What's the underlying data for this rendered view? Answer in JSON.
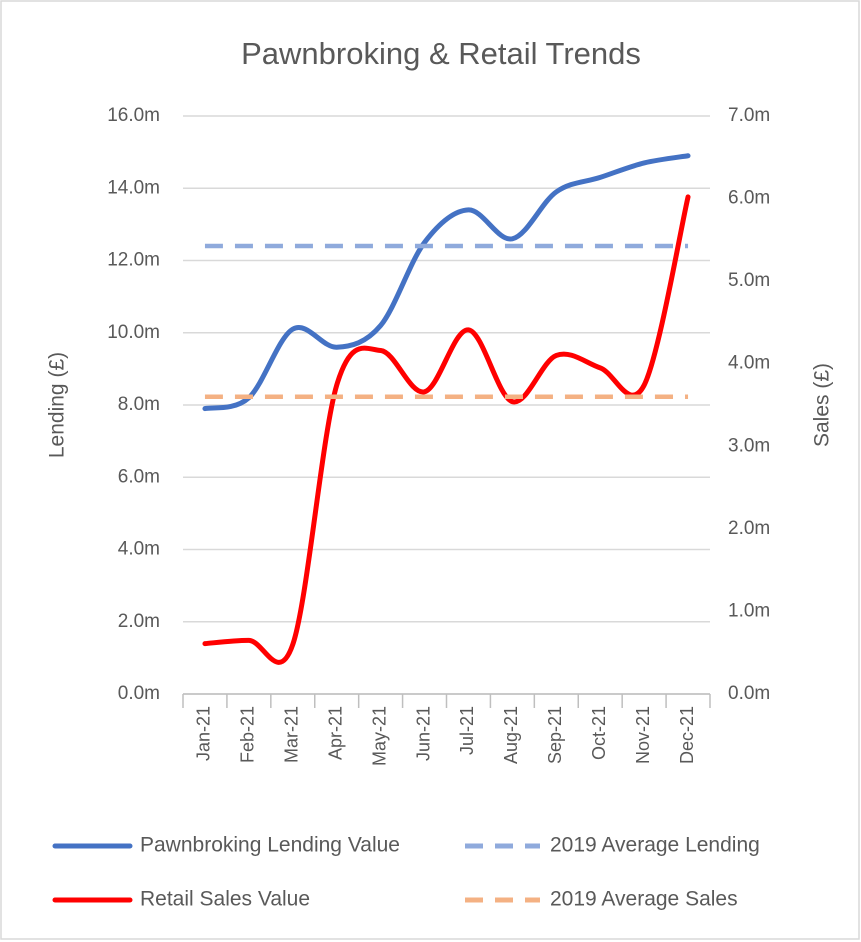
{
  "chart_data": {
    "type": "line",
    "title": "Pawnbroking & Retail Trends",
    "ylabel": "Lending (£)",
    "y2label": "Sales (£)",
    "categories": [
      "Jan-21",
      "Feb-21",
      "Mar-21",
      "Apr-21",
      "May-21",
      "Jun-21",
      "Jul-21",
      "Aug-21",
      "Sep-21",
      "Oct-21",
      "Nov-21",
      "Dec-21"
    ],
    "series": [
      {
        "name": "Pawnbroking Lending Value",
        "color": "#4472c4",
        "dashed": false,
        "axis": "y",
        "values": [
          7.9,
          8.2,
          10.1,
          9.6,
          10.2,
          12.5,
          13.4,
          12.6,
          13.9,
          14.3,
          14.7,
          14.9
        ]
      },
      {
        "name": "2019 Average Lending",
        "color": "#8faadc",
        "dashed": true,
        "axis": "y",
        "values": [
          12.4,
          12.4,
          12.4,
          12.4,
          12.4,
          12.4,
          12.4,
          12.4,
          12.4,
          12.4,
          12.4,
          12.4
        ]
      },
      {
        "name": "Retail Sales Value",
        "color": "#ff0000",
        "dashed": false,
        "axis": "y2",
        "values": [
          0.61,
          0.65,
          0.6,
          3.74,
          4.16,
          3.66,
          4.41,
          3.54,
          4.1,
          3.95,
          3.74,
          6.02
        ]
      },
      {
        "name": "2019 Average Sales",
        "color": "#f4b183",
        "dashed": true,
        "axis": "y2",
        "values": [
          3.6,
          3.6,
          3.6,
          3.6,
          3.6,
          3.6,
          3.6,
          3.6,
          3.6,
          3.6,
          3.6,
          3.6
        ]
      }
    ],
    "ylim": [
      0,
      16
    ],
    "yticks": [
      {
        "value": 0,
        "label": "0.0m"
      },
      {
        "value": 2,
        "label": "2.0m"
      },
      {
        "value": 4,
        "label": "4.0m"
      },
      {
        "value": 6,
        "label": "6.0m"
      },
      {
        "value": 8,
        "label": "8.0m"
      },
      {
        "value": 10,
        "label": "10.0m"
      },
      {
        "value": 12,
        "label": "12.0m"
      },
      {
        "value": 14,
        "label": "14.0m"
      },
      {
        "value": 16,
        "label": "16.0m"
      }
    ],
    "y2lim": [
      0,
      7
    ],
    "y2ticks": [
      {
        "value": 0,
        "label": "0.0m"
      },
      {
        "value": 1,
        "label": "1.0m"
      },
      {
        "value": 2,
        "label": "2.0m"
      },
      {
        "value": 3,
        "label": "3.0m"
      },
      {
        "value": 4,
        "label": "4.0m"
      },
      {
        "value": 5,
        "label": "5.0m"
      },
      {
        "value": 6,
        "label": "6.0m"
      },
      {
        "value": 7,
        "label": "7.0m"
      }
    ],
    "grid": true,
    "smooth": true,
    "legend": "bottom"
  }
}
